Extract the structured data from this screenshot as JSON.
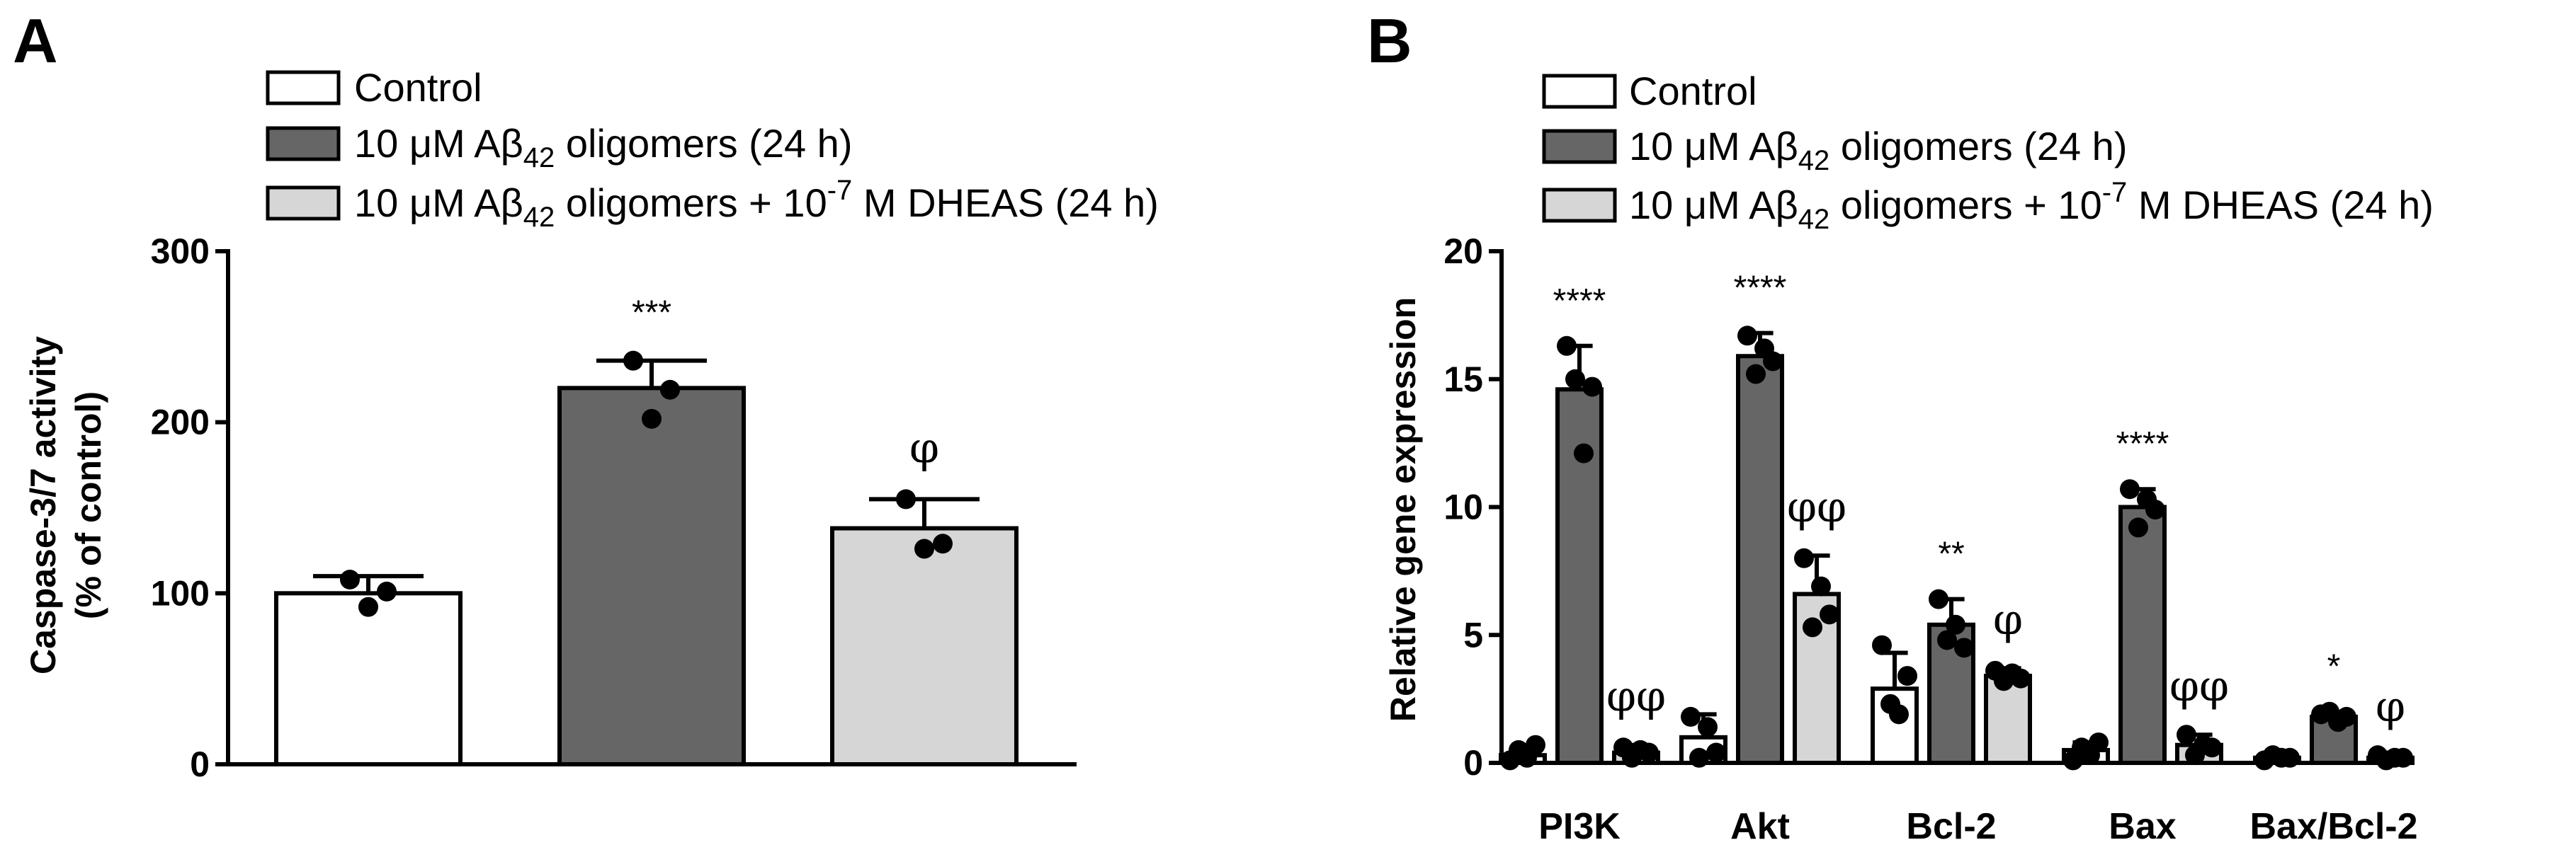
{
  "panels": [
    {
      "letter": "A",
      "legend": [
        {
          "label": "Control",
          "color": "#ffffff"
        },
        {
          "label": "10 μM Aβ42 oligomers (24 h)",
          "color": "#666666"
        },
        {
          "label": "10 μM Aβ42 oligomers + 10-7 M DHEAS (24 h)",
          "color": "#d6d6d6"
        }
      ]
    },
    {
      "letter": "B",
      "legend": [
        {
          "label": "Control",
          "color": "#ffffff"
        },
        {
          "label": "10 μM Aβ42 oligomers (24 h)",
          "color": "#666666"
        },
        {
          "label": "10 μM Aβ42 oligomers + 10-7 M DHEAS (24 h)",
          "color": "#d6d6d6"
        }
      ]
    }
  ],
  "legend_parts": {
    "control": "Control",
    "conc": "10 μM Aβ",
    "sub42": "42",
    "oligo24": " oligomers (24 h)",
    "oligoPlus": " oligomers + 10",
    "exp": "-7",
    "dheas": " M DHEAS (24 h)"
  },
  "chart_data": [
    {
      "type": "bar",
      "title": "",
      "ylabel": "Caspase-3/7 activity (% of control)",
      "ylabel_lines": [
        "Caspase-3/7 activity",
        "(% of control)"
      ],
      "xlabel": "",
      "ylim": [
        0,
        300
      ],
      "yticks": [
        0,
        100,
        200,
        300
      ],
      "categories": [
        "Control",
        "10 μM Aβ42 oligomers (24 h)",
        "10 μM Aβ42 oligomers + 10-7 M DHEAS (24 h)"
      ],
      "values": [
        100,
        220,
        138
      ],
      "errors": [
        10,
        16,
        17
      ],
      "colors": [
        "#ffffff",
        "#666666",
        "#d6d6d6"
      ],
      "points": [
        [
          108,
          92,
          101
        ],
        [
          236,
          202,
          219
        ],
        [
          155,
          126,
          129
        ]
      ],
      "annotations": [
        "",
        "***",
        "φ"
      ]
    },
    {
      "type": "bar",
      "title": "",
      "ylabel": "Relative gene expression",
      "xlabel": "",
      "ylim": [
        0,
        20
      ],
      "yticks": [
        0,
        5,
        10,
        15,
        20
      ],
      "categories": [
        "PI3K",
        "Akt",
        "Bcl-2",
        "Bax",
        "Bax/Bcl-2"
      ],
      "series": [
        {
          "name": "Control",
          "color": "#ffffff",
          "values": [
            0.3,
            1.0,
            2.9,
            0.5,
            0.2
          ],
          "errors": [
            0.3,
            0.9,
            1.4,
            0.3,
            0.1
          ],
          "points": [
            [
              0.1,
              0.5,
              0.2,
              0.7
            ],
            [
              1.8,
              0.2,
              1.4,
              0.4
            ],
            [
              4.6,
              2.3,
              1.9,
              3.4
            ],
            [
              0.1,
              0.6,
              0.3,
              0.8
            ],
            [
              0.1,
              0.3,
              0.2,
              0.2
            ]
          ],
          "annotations": [
            "",
            "",
            "",
            "",
            ""
          ]
        },
        {
          "name": "10 μM Aβ42 oligomers (24 h)",
          "color": "#666666",
          "values": [
            14.6,
            15.9,
            5.4,
            10.0,
            1.8
          ],
          "errors": [
            1.7,
            0.9,
            1.0,
            0.7,
            0.2
          ],
          "points": [
            [
              16.3,
              15.0,
              12.1,
              14.7
            ],
            [
              16.7,
              15.2,
              16.2,
              15.7
            ],
            [
              6.4,
              4.8,
              5.4,
              4.5
            ],
            [
              10.7,
              9.2,
              10.3,
              9.9
            ],
            [
              1.9,
              2.0,
              1.6,
              1.8
            ]
          ],
          "annotations": [
            "****",
            "****",
            "**",
            "****",
            "*"
          ]
        },
        {
          "name": "10 μM Aβ42 oligomers + 10-7 M DHEAS (24 h)",
          "color": "#d6d6d6",
          "values": [
            0.4,
            6.6,
            3.4,
            0.7,
            0.2
          ],
          "errors": [
            0.3,
            1.5,
            0.3,
            0.4,
            0.1
          ],
          "points": [
            [
              0.6,
              0.2,
              0.5,
              0.4
            ],
            [
              8.0,
              5.3,
              6.9,
              5.8
            ],
            [
              3.6,
              3.2,
              3.5,
              3.3
            ],
            [
              1.1,
              0.3,
              0.7,
              0.6
            ],
            [
              0.3,
              0.1,
              0.2,
              0.2
            ]
          ],
          "annotations": [
            "φφ",
            "φφ",
            "φ",
            "φφ",
            "φ"
          ]
        }
      ]
    }
  ]
}
